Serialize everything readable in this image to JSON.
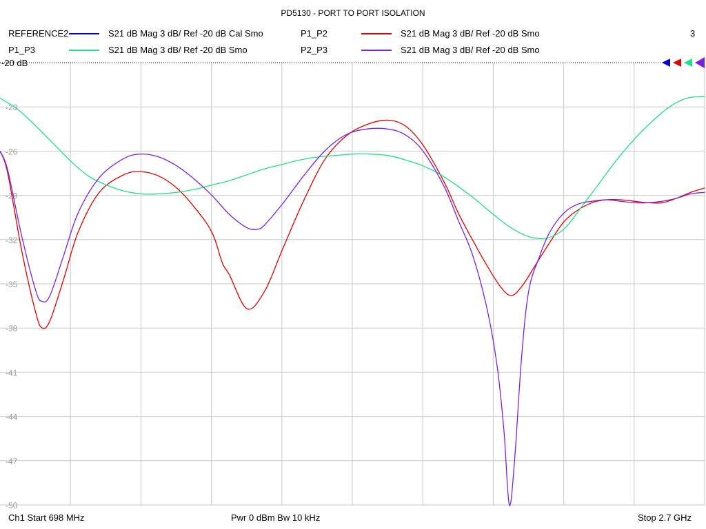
{
  "title": "PD5130 - PORT TO PORT ISOLATION",
  "legend": [
    {
      "trace": "REFERENCE2",
      "desc": "S21  dB Mag  3 dB/ Ref -20 dB  Cal Smo",
      "color": "#0000cc"
    },
    {
      "trace": "P1_P2",
      "desc": "S21  dB Mag  3 dB/ Ref -20 dB  Smo",
      "color": "#dd0000"
    },
    {
      "trace": "P1_P3",
      "desc": "S21  dB Mag  3 dB/ Ref -20 dB  Smo",
      "color": "#22dd88"
    },
    {
      "trace": "P2_P3",
      "desc": "S21  dB Mag  3 dB/ Ref -20 dB  Smo",
      "color": "#7722dd"
    }
  ],
  "corner_value": "3",
  "ref_label": "-20 dB",
  "footer": {
    "start": "Ch1  Start  698 MHz",
    "power": "Pwr  0 dBm  Bw  10 kHz",
    "stop": "Stop  2.7 GHz"
  },
  "chart_data": {
    "type": "line",
    "title": "PD5130 - PORT TO PORT ISOLATION",
    "xlabel": "",
    "ylabel": "",
    "xlim": [
      698,
      2700
    ],
    "ylim": [
      -50,
      -20
    ],
    "y_ticks": [
      -20,
      -23,
      -26,
      -29,
      -32,
      -35,
      -38,
      -41,
      -44,
      -47,
      -50
    ],
    "y_tick_labels": [
      "-20",
      "-23",
      "-26",
      "-29",
      "-32",
      "-35",
      "-38",
      "-41",
      "-44",
      "-47",
      "-50"
    ],
    "x_gridlines": 10,
    "grid": true,
    "series": [
      {
        "name": "P1_P2",
        "color": "#dd0000",
        "x": [
          698,
          720,
          760,
          800,
          818,
          840,
          880,
          920,
          980,
          1050,
          1100,
          1150,
          1200,
          1250,
          1300,
          1330,
          1350,
          1400,
          1450,
          1500,
          1560,
          1620,
          1680,
          1740,
          1800,
          1850,
          1900,
          1960,
          2000,
          2040,
          2080,
          2120,
          2150,
          2180,
          2220,
          2260,
          2300,
          2340,
          2380,
          2420,
          2460,
          2500,
          2540,
          2580,
          2620,
          2660,
          2700
        ],
        "y": [
          -26.0,
          -27.5,
          -32.8,
          -37.0,
          -38.0,
          -37.5,
          -34.6,
          -31.5,
          -28.8,
          -27.6,
          -27.4,
          -27.7,
          -28.5,
          -29.8,
          -31.5,
          -33.6,
          -34.4,
          -36.7,
          -35.5,
          -32.7,
          -29.4,
          -26.6,
          -25.0,
          -24.2,
          -23.9,
          -24.3,
          -25.6,
          -28.1,
          -30.2,
          -32.0,
          -33.7,
          -35.2,
          -35.8,
          -35.2,
          -33.7,
          -32.2,
          -30.8,
          -30.0,
          -29.5,
          -29.3,
          -29.3,
          -29.4,
          -29.5,
          -29.5,
          -29.2,
          -28.8,
          -28.5
        ]
      },
      {
        "name": "P1_P3",
        "color": "#22dd88",
        "x": [
          698,
          750,
          800,
          850,
          900,
          950,
          1000,
          1050,
          1100,
          1150,
          1200,
          1250,
          1300,
          1350,
          1400,
          1450,
          1500,
          1550,
          1600,
          1650,
          1700,
          1750,
          1800,
          1850,
          1900,
          1950,
          2000,
          2050,
          2100,
          2150,
          2200,
          2250,
          2300,
          2350,
          2400,
          2450,
          2500,
          2550,
          2600,
          2650,
          2700
        ],
        "y": [
          -22.4,
          -23.2,
          -24.3,
          -25.5,
          -26.7,
          -27.7,
          -28.3,
          -28.7,
          -28.9,
          -28.9,
          -28.8,
          -28.6,
          -28.3,
          -28.0,
          -27.6,
          -27.2,
          -26.9,
          -26.6,
          -26.4,
          -26.3,
          -26.2,
          -26.2,
          -26.3,
          -26.6,
          -27.0,
          -27.6,
          -28.4,
          -29.3,
          -30.3,
          -31.2,
          -31.8,
          -31.9,
          -31.3,
          -29.8,
          -28.2,
          -26.6,
          -25.2,
          -24.0,
          -23.0,
          -22.4,
          -22.3
        ]
      },
      {
        "name": "P2_P3",
        "color": "#7722dd",
        "x": [
          698,
          720,
          760,
          800,
          818,
          840,
          880,
          920,
          980,
          1050,
          1100,
          1150,
          1200,
          1250,
          1300,
          1350,
          1400,
          1430,
          1450,
          1500,
          1560,
          1620,
          1680,
          1740,
          1800,
          1850,
          1900,
          1960,
          2000,
          2040,
          2080,
          2110,
          2130,
          2145,
          2160,
          2180,
          2200,
          2230,
          2260,
          2300,
          2340,
          2380,
          2420,
          2460,
          2500,
          2540,
          2580,
          2620,
          2660,
          2700
        ],
        "y": [
          -26.0,
          -27.3,
          -31.8,
          -35.5,
          -36.2,
          -35.8,
          -33.0,
          -30.2,
          -27.8,
          -26.5,
          -26.2,
          -26.4,
          -27.0,
          -27.9,
          -29.0,
          -30.3,
          -31.2,
          -31.3,
          -31.0,
          -29.6,
          -27.7,
          -26.0,
          -24.9,
          -24.5,
          -24.5,
          -24.9,
          -26.0,
          -28.4,
          -30.7,
          -33.0,
          -36.5,
          -40.5,
          -45.0,
          -50.0,
          -47.0,
          -40.0,
          -35.5,
          -33.2,
          -31.5,
          -30.2,
          -29.6,
          -29.4,
          -29.3,
          -29.4,
          -29.5,
          -29.5,
          -29.4,
          -29.2,
          -28.9,
          -28.8
        ]
      }
    ]
  }
}
